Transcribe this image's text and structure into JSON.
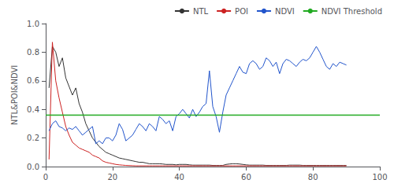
{
  "chart_data": {
    "type": "line",
    "ylabel": "NTL&POI&NDVI",
    "xlim": [
      0,
      100
    ],
    "ylim": [
      0.0,
      1.0
    ],
    "xticks": [
      0,
      20,
      40,
      60,
      80,
      100
    ],
    "yticks": [
      {
        "value": 0.0,
        "label": "0.0"
      },
      0.2,
      0.4,
      0.6,
      0.8,
      {
        "value": 1.0,
        "label": "1.0"
      }
    ],
    "grid": false,
    "legend": "upper right",
    "series": [
      {
        "name": "NTL",
        "color": "#333333",
        "x": [
          1,
          2,
          3,
          4,
          5,
          6,
          7,
          8,
          9,
          10,
          11,
          12,
          13,
          14,
          15,
          16,
          17,
          18,
          19,
          20,
          21,
          22,
          23,
          24,
          25,
          26,
          27,
          28,
          29,
          30,
          31,
          32,
          33,
          34,
          35,
          36,
          37,
          38,
          39,
          40,
          41,
          42,
          43,
          44,
          45,
          46,
          47,
          48,
          49,
          50,
          51,
          52,
          53,
          54,
          55,
          56,
          57,
          58,
          59,
          60,
          61,
          62,
          63,
          64,
          65,
          66,
          67,
          68,
          69,
          70,
          71,
          72,
          73,
          74,
          75,
          76,
          77,
          78,
          79,
          80,
          81,
          82,
          83,
          84,
          85,
          86,
          87,
          88,
          89,
          90
        ],
        "values": [
          0.55,
          0.84,
          0.8,
          0.7,
          0.76,
          0.62,
          0.56,
          0.5,
          0.55,
          0.44,
          0.38,
          0.3,
          0.25,
          0.2,
          0.17,
          0.14,
          0.12,
          0.1,
          0.09,
          0.08,
          0.07,
          0.06,
          0.055,
          0.05,
          0.045,
          0.04,
          0.035,
          0.03,
          0.03,
          0.025,
          0.02,
          0.02,
          0.02,
          0.02,
          0.018,
          0.015,
          0.015,
          0.015,
          0.012,
          0.015,
          0.015,
          0.015,
          0.012,
          0.01,
          0.01,
          0.01,
          0.01,
          0.01,
          0.01,
          0.008,
          0.008,
          0.008,
          0.008,
          0.015,
          0.018,
          0.02,
          0.02,
          0.018,
          0.015,
          0.012,
          0.01,
          0.01,
          0.01,
          0.01,
          0.01,
          0.008,
          0.008,
          0.008,
          0.008,
          0.008,
          0.008,
          0.008,
          0.01,
          0.01,
          0.01,
          0.01,
          0.008,
          0.008,
          0.008,
          0.008,
          0.008,
          0.008,
          0.008,
          0.008,
          0.008,
          0.008,
          0.008,
          0.008,
          0.008,
          0.008
        ]
      },
      {
        "name": "POI",
        "color": "#cc2222",
        "x": [
          1,
          2,
          3,
          4,
          5,
          6,
          7,
          8,
          9,
          10,
          11,
          12,
          13,
          14,
          15,
          16,
          17,
          18,
          19,
          20,
          21,
          22,
          23,
          24,
          25,
          26,
          27,
          28,
          29,
          30,
          31,
          32,
          33,
          34,
          35,
          36,
          37,
          38,
          39,
          40,
          41,
          42,
          43,
          44,
          45,
          46,
          47,
          48,
          49,
          50,
          51,
          52,
          53,
          54,
          55,
          56,
          57,
          58,
          59,
          60,
          61,
          62,
          63,
          64,
          65,
          66,
          67,
          68,
          69,
          70,
          71,
          72,
          73,
          74,
          75,
          76,
          77,
          78,
          79,
          80,
          81,
          82,
          83,
          84,
          85,
          86,
          87,
          88,
          89,
          90
        ],
        "values": [
          0.05,
          0.87,
          0.6,
          0.48,
          0.38,
          0.28,
          0.22,
          0.17,
          0.15,
          0.13,
          0.12,
          0.11,
          0.1,
          0.08,
          0.07,
          0.06,
          0.04,
          0.03,
          0.025,
          0.02,
          0.015,
          0.012,
          0.01,
          0.008,
          0.007,
          0.006,
          0.005,
          0.005,
          0.005,
          0.005,
          0.005,
          0.005,
          0.005,
          0.005,
          0.005,
          0.005,
          0.005,
          0.005,
          0.005,
          0.005,
          0.005,
          0.005,
          0.005,
          0.005,
          0.005,
          0.005,
          0.005,
          0.005,
          0.005,
          0.005,
          0.005,
          0.005,
          0.005,
          0.005,
          0.005,
          0.005,
          0.005,
          0.005,
          0.005,
          0.005,
          0.005,
          0.005,
          0.005,
          0.005,
          0.005,
          0.005,
          0.005,
          0.005,
          0.005,
          0.005,
          0.005,
          0.005,
          0.005,
          0.005,
          0.005,
          0.005,
          0.005,
          0.005,
          0.005,
          0.005,
          0.005,
          0.005,
          0.005,
          0.005,
          0.005,
          0.005,
          0.005,
          0.005,
          0.005,
          0.005
        ]
      },
      {
        "name": "NDVI",
        "color": "#2255cc",
        "x": [
          1,
          2,
          3,
          4,
          5,
          6,
          7,
          8,
          9,
          10,
          11,
          12,
          13,
          14,
          15,
          16,
          17,
          18,
          19,
          20,
          21,
          22,
          23,
          24,
          25,
          26,
          27,
          28,
          29,
          30,
          31,
          32,
          33,
          34,
          35,
          36,
          37,
          38,
          39,
          40,
          41,
          42,
          43,
          44,
          45,
          46,
          47,
          48,
          49,
          50,
          51,
          52,
          53,
          54,
          55,
          56,
          57,
          58,
          59,
          60,
          61,
          62,
          63,
          64,
          65,
          66,
          67,
          68,
          69,
          70,
          71,
          72,
          73,
          74,
          75,
          76,
          77,
          78,
          79,
          80,
          81,
          82,
          83,
          84,
          85,
          86,
          87,
          88,
          89,
          90
        ],
        "values": [
          0.25,
          0.3,
          0.32,
          0.28,
          0.27,
          0.25,
          0.27,
          0.26,
          0.28,
          0.25,
          0.22,
          0.24,
          0.26,
          0.28,
          0.16,
          0.18,
          0.16,
          0.2,
          0.2,
          0.18,
          0.22,
          0.3,
          0.26,
          0.18,
          0.2,
          0.22,
          0.26,
          0.3,
          0.28,
          0.25,
          0.3,
          0.28,
          0.25,
          0.35,
          0.33,
          0.3,
          0.32,
          0.25,
          0.35,
          0.37,
          0.4,
          0.37,
          0.34,
          0.4,
          0.35,
          0.38,
          0.42,
          0.44,
          0.67,
          0.42,
          0.35,
          0.24,
          0.38,
          0.5,
          0.55,
          0.6,
          0.65,
          0.7,
          0.66,
          0.65,
          0.72,
          0.74,
          0.72,
          0.68,
          0.7,
          0.76,
          0.74,
          0.7,
          0.73,
          0.65,
          0.72,
          0.75,
          0.74,
          0.72,
          0.7,
          0.73,
          0.75,
          0.74,
          0.76,
          0.8,
          0.84,
          0.8,
          0.75,
          0.7,
          0.68,
          0.72,
          0.7,
          0.73,
          0.72,
          0.71
        ]
      },
      {
        "name": "NDVI Threshold",
        "color": "#22aa22",
        "type": "hline",
        "values": [
          0.36
        ]
      }
    ]
  }
}
